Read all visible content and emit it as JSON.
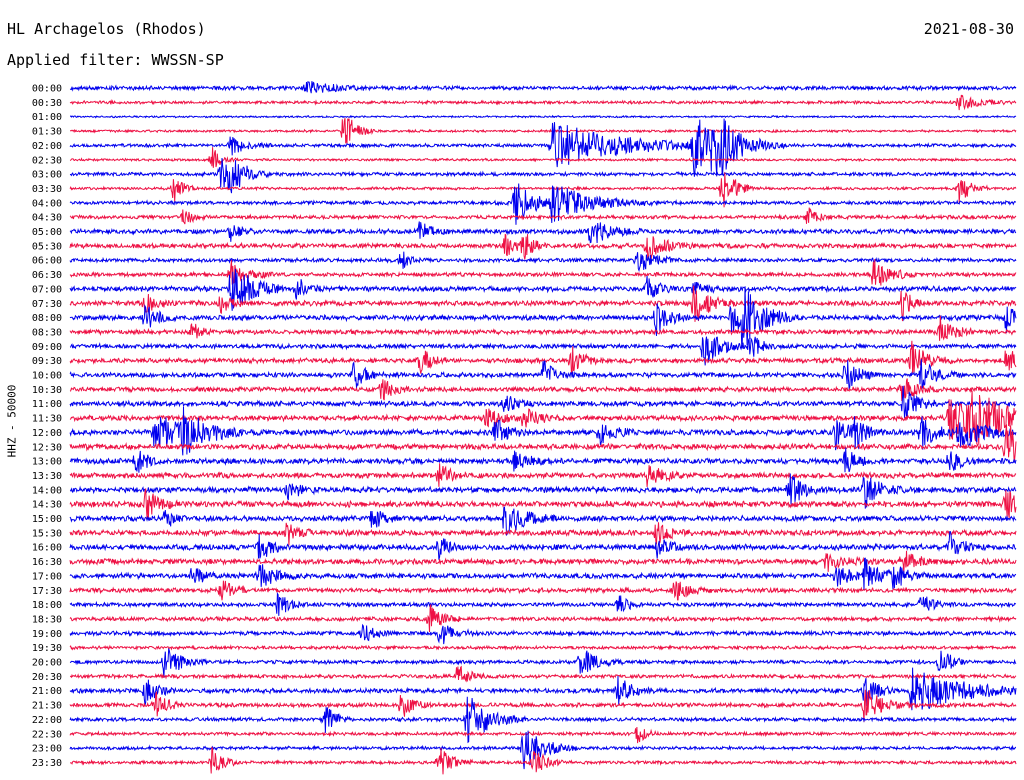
{
  "chart_data": {
    "type": "line",
    "title": "HL Archagelos (Rhodos)",
    "subtitle": "Applied filter: WWSSN-SP",
    "date": "2021-08-30",
    "ylabel": "HHZ - 50000",
    "rows": [
      "00:00",
      "00:30",
      "01:00",
      "01:30",
      "02:00",
      "02:30",
      "03:00",
      "03:30",
      "04:00",
      "04:30",
      "05:00",
      "05:30",
      "06:00",
      "06:30",
      "07:00",
      "07:30",
      "08:00",
      "08:30",
      "09:00",
      "09:30",
      "10:00",
      "10:30",
      "11:00",
      "11:30",
      "12:00",
      "12:30",
      "13:00",
      "13:30",
      "14:00",
      "14:30",
      "15:00",
      "15:30",
      "16:00",
      "16:30",
      "17:00",
      "17:30",
      "18:00",
      "18:30",
      "19:00",
      "19:30",
      "20:00",
      "20:30",
      "21:00",
      "21:30",
      "22:00",
      "22:30",
      "23:00",
      "23:30"
    ],
    "series_colors": [
      "#0000ee",
      "#ee1144"
    ],
    "noise_level": [
      2.2,
      1.6,
      1.0,
      1.3,
      1.8,
      1.3,
      2.0,
      1.5,
      2.0,
      2.0,
      2.6,
      2.6,
      2.1,
      2.2,
      2.8,
      2.8,
      2.8,
      2.5,
      2.4,
      2.6,
      2.6,
      2.6,
      2.8,
      2.8,
      3.1,
      3.0,
      3.0,
      3.0,
      3.1,
      3.2,
      3.0,
      3.0,
      3.0,
      3.0,
      2.8,
      2.5,
      2.2,
      2.2,
      2.2,
      1.8,
      2.0,
      2.0,
      2.5,
      2.3,
      2.0,
      1.8,
      1.8,
      1.8
    ],
    "events": [
      [
        0,
        0.25,
        8,
        20
      ],
      [
        1,
        0.94,
        8,
        18
      ],
      [
        3,
        0.29,
        22,
        10
      ],
      [
        4,
        0.17,
        10,
        14
      ],
      [
        4,
        0.51,
        25,
        60
      ],
      [
        4,
        0.66,
        30,
        22
      ],
      [
        4,
        0.68,
        28,
        24
      ],
      [
        5,
        0.15,
        14,
        8
      ],
      [
        6,
        0.16,
        16,
        12
      ],
      [
        6,
        0.17,
        16,
        14
      ],
      [
        7,
        0.11,
        14,
        8
      ],
      [
        7,
        0.69,
        26,
        10
      ],
      [
        7,
        0.94,
        16,
        10
      ],
      [
        8,
        0.47,
        22,
        20
      ],
      [
        8,
        0.51,
        18,
        35
      ],
      [
        9,
        0.12,
        8,
        10
      ],
      [
        9,
        0.78,
        10,
        8
      ],
      [
        10,
        0.37,
        10,
        10
      ],
      [
        10,
        0.55,
        14,
        18
      ],
      [
        10,
        0.17,
        10,
        8
      ],
      [
        11,
        0.46,
        10,
        12
      ],
      [
        11,
        0.48,
        14,
        8
      ],
      [
        11,
        0.61,
        14,
        16
      ],
      [
        12,
        0.35,
        10,
        8
      ],
      [
        12,
        0.6,
        14,
        14
      ],
      [
        13,
        0.17,
        14,
        14
      ],
      [
        13,
        0.85,
        16,
        14
      ],
      [
        14,
        0.17,
        30,
        18
      ],
      [
        14,
        0.24,
        12,
        10
      ],
      [
        14,
        0.61,
        12,
        10
      ],
      [
        14,
        0.66,
        10,
        8
      ],
      [
        15,
        0.08,
        10,
        10
      ],
      [
        15,
        0.16,
        10,
        8
      ],
      [
        15,
        0.66,
        20,
        14
      ],
      [
        15,
        0.88,
        18,
        8
      ],
      [
        16,
        0.08,
        14,
        10
      ],
      [
        16,
        0.62,
        16,
        12
      ],
      [
        16,
        0.7,
        18,
        16
      ],
      [
        16,
        0.71,
        26,
        20
      ],
      [
        16,
        0.99,
        14,
        8
      ],
      [
        17,
        0.13,
        10,
        8
      ],
      [
        17,
        0.92,
        16,
        12
      ],
      [
        18,
        0.67,
        20,
        16
      ],
      [
        18,
        0.72,
        12,
        10
      ],
      [
        19,
        0.53,
        14,
        12
      ],
      [
        19,
        0.37,
        14,
        10
      ],
      [
        19,
        0.89,
        18,
        14
      ],
      [
        19,
        0.99,
        14,
        10
      ],
      [
        20,
        0.3,
        14,
        10
      ],
      [
        20,
        0.5,
        14,
        12
      ],
      [
        20,
        0.82,
        16,
        12
      ],
      [
        20,
        0.9,
        14,
        14
      ],
      [
        21,
        0.33,
        12,
        10
      ],
      [
        21,
        0.88,
        16,
        12
      ],
      [
        22,
        0.46,
        10,
        10
      ],
      [
        22,
        0.88,
        20,
        12
      ],
      [
        23,
        0.93,
        22,
        40
      ],
      [
        23,
        0.95,
        22,
        28
      ],
      [
        23,
        0.44,
        14,
        12
      ],
      [
        23,
        0.48,
        12,
        12
      ],
      [
        24,
        0.09,
        18,
        30
      ],
      [
        24,
        0.12,
        18,
        20
      ],
      [
        24,
        0.45,
        14,
        12
      ],
      [
        24,
        0.56,
        12,
        12
      ],
      [
        24,
        0.81,
        18,
        12
      ],
      [
        24,
        0.83,
        16,
        10
      ],
      [
        24,
        0.9,
        18,
        12
      ],
      [
        24,
        0.94,
        18,
        20
      ],
      [
        25,
        0.99,
        26,
        30
      ],
      [
        26,
        0.07,
        14,
        10
      ],
      [
        26,
        0.47,
        10,
        14
      ],
      [
        26,
        0.82,
        12,
        10
      ],
      [
        26,
        0.93,
        12,
        10
      ],
      [
        27,
        0.39,
        12,
        10
      ],
      [
        27,
        0.61,
        14,
        12
      ],
      [
        28,
        0.23,
        12,
        10
      ],
      [
        28,
        0.76,
        16,
        14
      ],
      [
        28,
        0.84,
        18,
        14
      ],
      [
        29,
        0.08,
        16,
        12
      ],
      [
        29,
        0.99,
        18,
        14
      ],
      [
        30,
        0.46,
        18,
        18
      ],
      [
        30,
        0.32,
        12,
        10
      ],
      [
        30,
        0.1,
        12,
        8
      ],
      [
        31,
        0.23,
        12,
        10
      ],
      [
        31,
        0.62,
        12,
        12
      ],
      [
        32,
        0.2,
        14,
        12
      ],
      [
        32,
        0.39,
        12,
        8
      ],
      [
        32,
        0.62,
        10,
        12
      ],
      [
        32,
        0.93,
        14,
        12
      ],
      [
        33,
        0.8,
        10,
        14
      ],
      [
        33,
        0.88,
        12,
        12
      ],
      [
        34,
        0.13,
        12,
        10
      ],
      [
        34,
        0.2,
        14,
        14
      ],
      [
        34,
        0.81,
        12,
        12
      ],
      [
        34,
        0.84,
        16,
        14
      ],
      [
        34,
        0.87,
        12,
        12
      ],
      [
        35,
        0.16,
        12,
        10
      ],
      [
        35,
        0.64,
        12,
        12
      ],
      [
        36,
        0.22,
        12,
        10
      ],
      [
        36,
        0.58,
        10,
        8
      ],
      [
        36,
        0.9,
        10,
        12
      ],
      [
        37,
        0.38,
        14,
        12
      ],
      [
        38,
        0.39,
        14,
        12
      ],
      [
        38,
        0.31,
        10,
        10
      ],
      [
        40,
        0.1,
        18,
        14
      ],
      [
        40,
        0.54,
        16,
        14
      ],
      [
        40,
        0.92,
        16,
        10
      ],
      [
        41,
        0.41,
        12,
        10
      ],
      [
        42,
        0.08,
        16,
        10
      ],
      [
        42,
        0.58,
        16,
        12
      ],
      [
        42,
        0.84,
        16,
        12
      ],
      [
        42,
        0.89,
        24,
        44
      ],
      [
        43,
        0.09,
        14,
        10
      ],
      [
        43,
        0.35,
        14,
        10
      ],
      [
        43,
        0.84,
        20,
        16
      ],
      [
        44,
        0.27,
        14,
        10
      ],
      [
        44,
        0.42,
        26,
        20
      ],
      [
        45,
        0.6,
        10,
        8
      ],
      [
        46,
        0.48,
        22,
        18
      ],
      [
        47,
        0.15,
        14,
        10
      ],
      [
        47,
        0.39,
        16,
        12
      ],
      [
        47,
        0.49,
        16,
        10
      ]
    ]
  }
}
